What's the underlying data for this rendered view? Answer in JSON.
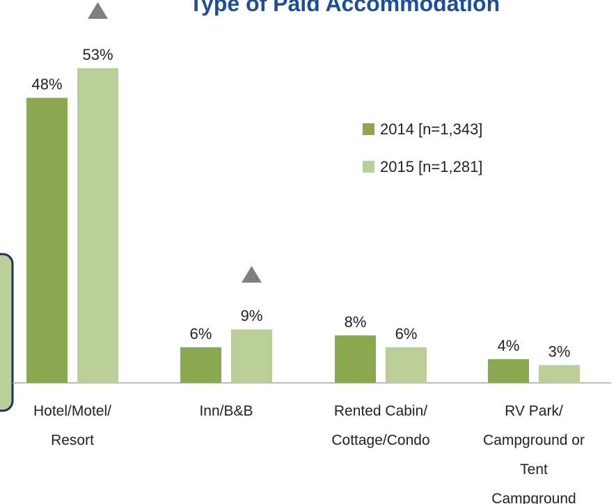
{
  "chart_data": {
    "type": "bar",
    "title": "Type of Paid Accommodation",
    "categories": [
      "Hotel/Motel/\nResort",
      "Inn/B&B",
      "Rented Cabin/\nCottage/Condo",
      "RV Park/\nCampground or\nTent\nCampground"
    ],
    "series": [
      {
        "name": "2014 [n=1,343]",
        "color": "#8aa84e",
        "values": [
          48,
          6,
          8,
          4
        ],
        "value_labels": [
          "48%",
          "6%",
          "8%",
          "4%"
        ]
      },
      {
        "name": "2015 [n=1,281]",
        "color": "#b9cf97",
        "values": [
          53,
          9,
          6,
          3
        ],
        "value_labels": [
          "53%",
          "9%",
          "6%",
          "3%"
        ]
      }
    ],
    "ylim": [
      0,
      55
    ]
  }
}
